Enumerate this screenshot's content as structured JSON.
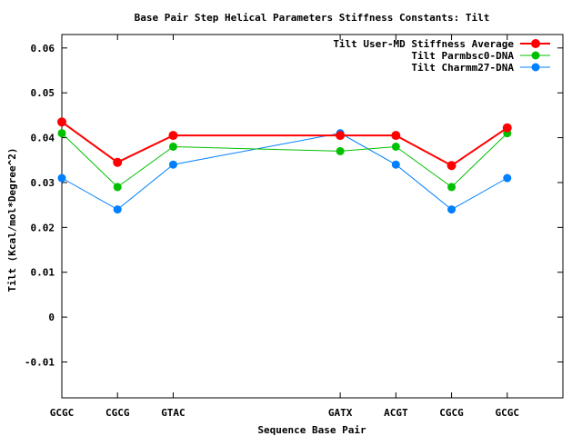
{
  "chart_data": {
    "type": "line",
    "title": "Base Pair Step Helical Parameters Stiffness Constants: Tilt",
    "xlabel": "Sequence Base Pair",
    "ylabel": "Tilt (Kcal/mol*Degree^2)",
    "ylim": [
      -0.018,
      0.063
    ],
    "yticks": [
      -0.01,
      0,
      0.01,
      0.02,
      0.03,
      0.04,
      0.05,
      0.06
    ],
    "ytick_labels": [
      "-0.01",
      "0",
      "0.01",
      "0.02",
      "0.03",
      "0.04",
      "0.05",
      "0.06"
    ],
    "xlim": [
      1,
      10
    ],
    "x": [
      1,
      2,
      3,
      6,
      7,
      8,
      9
    ],
    "categories": [
      "GCGC",
      "CGCG",
      "GTAC",
      "GATX",
      "ACGT",
      "CGCG",
      "GCGC"
    ],
    "grid": false,
    "legend_position": "top-right",
    "series": [
      {
        "name": "Tilt User-MD Stiffness Average",
        "color": "#ff0000",
        "values": [
          0.0435,
          0.0345,
          0.0405,
          0.0405,
          0.0405,
          0.0338,
          0.0422
        ]
      },
      {
        "name": "Tilt Parmbsc0-DNA",
        "color": "#00c000",
        "values": [
          0.041,
          0.029,
          0.038,
          0.037,
          0.038,
          0.029,
          0.041
        ]
      },
      {
        "name": "Tilt Charmm27-DNA",
        "color": "#0080ff",
        "values": [
          0.031,
          0.024,
          0.034,
          0.041,
          0.034,
          0.024,
          0.031
        ]
      }
    ]
  }
}
